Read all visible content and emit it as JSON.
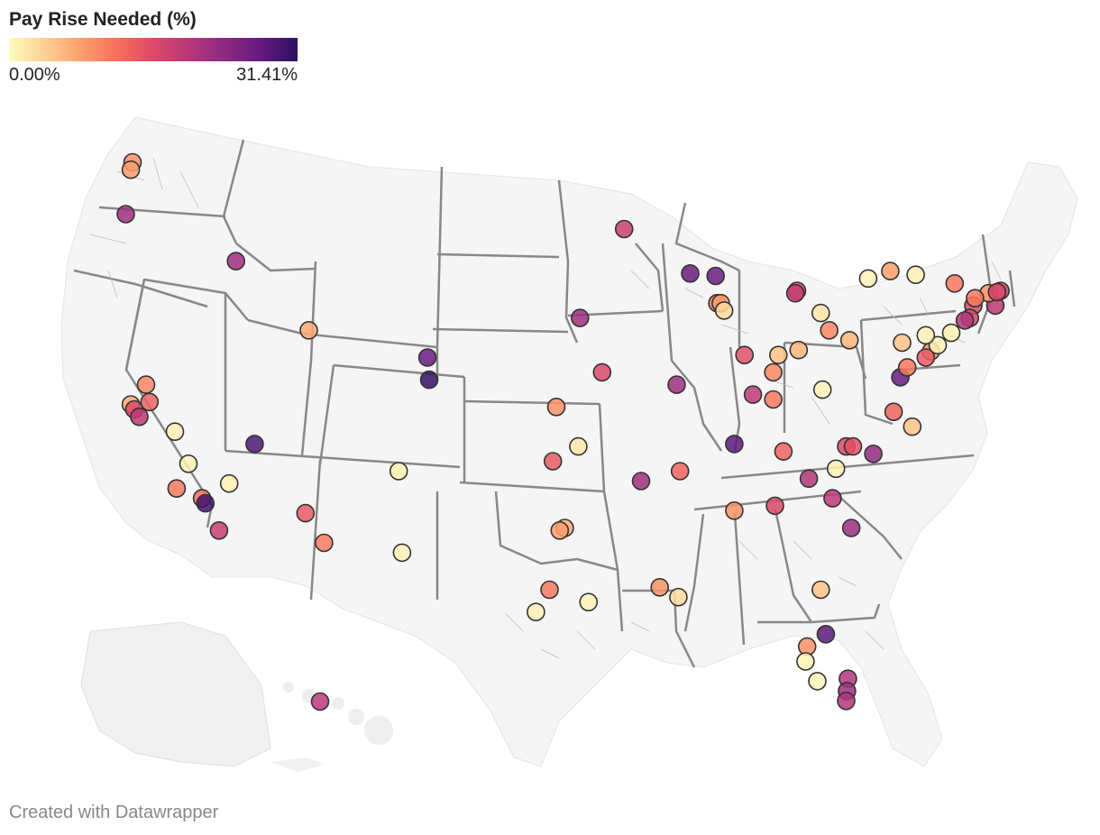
{
  "legend": {
    "title": "Pay Rise Needed (%)",
    "min_label": "0.00%",
    "max_label": "31.41%",
    "min_value": 0.0,
    "max_value": 31.41,
    "colors": [
      "#fcfdbf",
      "#fecf92",
      "#fd9f6c",
      "#f7705c",
      "#de4968",
      "#b73779",
      "#8c2981",
      "#641a80",
      "#2c115f"
    ]
  },
  "footer": {
    "credit": "Created with Datawrapper"
  },
  "points": [
    {
      "id": "seattle",
      "lon": -122.3,
      "lat": 47.6,
      "value": 9
    },
    {
      "id": "tacoma",
      "lon": -122.4,
      "lat": 47.3,
      "value": 8
    },
    {
      "id": "portland",
      "lon": -122.7,
      "lat": 45.5,
      "value": 22
    },
    {
      "id": "boise",
      "lon": -116.2,
      "lat": 43.6,
      "value": 22
    },
    {
      "id": "sacramento",
      "lon": -121.5,
      "lat": 38.6,
      "value": 10
    },
    {
      "id": "sf",
      "lon": -122.4,
      "lat": 37.8,
      "value": 7
    },
    {
      "id": "oakland",
      "lon": -122.2,
      "lat": 37.6,
      "value": 16
    },
    {
      "id": "sanjose",
      "lon": -121.9,
      "lat": 37.3,
      "value": 19
    },
    {
      "id": "stockton",
      "lon": -121.3,
      "lat": 37.9,
      "value": 13
    },
    {
      "id": "fresno",
      "lon": -119.8,
      "lat": 36.7,
      "value": 1
    },
    {
      "id": "bakersfield",
      "lon": -119.0,
      "lat": 35.4,
      "value": 1
    },
    {
      "id": "santabarbara",
      "lon": -119.7,
      "lat": 34.4,
      "value": 11
    },
    {
      "id": "la",
      "lon": -118.2,
      "lat": 34.0,
      "value": 12
    },
    {
      "id": "longbeach",
      "lon": -118.0,
      "lat": 33.8,
      "value": 30
    },
    {
      "id": "sandiego",
      "lon": -117.2,
      "lat": 32.7,
      "value": 18
    },
    {
      "id": "riverside",
      "lon": -116.6,
      "lat": 34.6,
      "value": 1
    },
    {
      "id": "vegas",
      "lon": -115.1,
      "lat": 36.2,
      "value": 29
    },
    {
      "id": "saltlake",
      "lon": -111.9,
      "lat": 40.8,
      "value": 7
    },
    {
      "id": "phoenix",
      "lon": -112.1,
      "lat": 33.4,
      "value": 14
    },
    {
      "id": "tucson",
      "lon": -111.0,
      "lat": 32.2,
      "value": 11
    },
    {
      "id": "albuquerque",
      "lon": -106.6,
      "lat": 35.1,
      "value": 1
    },
    {
      "id": "elpaso",
      "lon": -106.4,
      "lat": 31.8,
      "value": 1
    },
    {
      "id": "denver",
      "lon": -104.9,
      "lat": 39.7,
      "value": 27
    },
    {
      "id": "coloradosprings",
      "lon": -104.8,
      "lat": 38.8,
      "value": 31
    },
    {
      "id": "wichita",
      "lon": -97.3,
      "lat": 37.7,
      "value": 9
    },
    {
      "id": "okc",
      "lon": -97.5,
      "lat": 35.5,
      "value": 14
    },
    {
      "id": "tulsa",
      "lon": -96.0,
      "lat": 36.1,
      "value": 2
    },
    {
      "id": "dallas",
      "lon": -96.8,
      "lat": 32.8,
      "value": 7
    },
    {
      "id": "fortworth",
      "lon": -97.1,
      "lat": 32.7,
      "value": 8
    },
    {
      "id": "austin",
      "lon": -97.7,
      "lat": 30.3,
      "value": 11
    },
    {
      "id": "sanantonio",
      "lon": -98.5,
      "lat": 29.4,
      "value": 1
    },
    {
      "id": "houston",
      "lon": -95.4,
      "lat": 29.8,
      "value": 1
    },
    {
      "id": "minneapolis",
      "lon": -93.3,
      "lat": 44.9,
      "value": 18
    },
    {
      "id": "omaha",
      "lon": -95.9,
      "lat": 41.3,
      "value": 22
    },
    {
      "id": "kansascity",
      "lon": -94.6,
      "lat": 39.1,
      "value": 16
    },
    {
      "id": "littlerock",
      "lon": -92.3,
      "lat": 34.7,
      "value": 22
    },
    {
      "id": "madison",
      "lon": -89.4,
      "lat": 43.1,
      "value": 27
    },
    {
      "id": "stlouis",
      "lon": -90.2,
      "lat": 38.6,
      "value": 22
    },
    {
      "id": "milwaukee",
      "lon": -87.9,
      "lat": 43.0,
      "value": 27
    },
    {
      "id": "chicago",
      "lon": -87.8,
      "lat": 41.9,
      "value": 11
    },
    {
      "id": "chicago2",
      "lon": -87.6,
      "lat": 41.9,
      "value": 8
    },
    {
      "id": "chicago3",
      "lon": -87.4,
      "lat": 41.6,
      "value": 3
    },
    {
      "id": "detroit",
      "lon": -83.1,
      "lat": 42.4,
      "value": 16
    },
    {
      "id": "detroit2",
      "lon": -83.2,
      "lat": 42.3,
      "value": 18
    },
    {
      "id": "indianapolis",
      "lon": -86.2,
      "lat": 39.8,
      "value": 15
    },
    {
      "id": "columbus",
      "lon": -83.0,
      "lat": 40.0,
      "value": 6
    },
    {
      "id": "cincinnati",
      "lon": -84.5,
      "lat": 39.1,
      "value": 10
    },
    {
      "id": "dayton",
      "lon": -84.2,
      "lat": 39.8,
      "value": 5
    },
    {
      "id": "cleveland",
      "lon": -81.7,
      "lat": 41.5,
      "value": 2
    },
    {
      "id": "akron",
      "lon": -81.2,
      "lat": 40.8,
      "value": 10
    },
    {
      "id": "louisville",
      "lon": -85.7,
      "lat": 38.2,
      "value": 19
    },
    {
      "id": "lexington",
      "lon": -84.5,
      "lat": 38.0,
      "value": 11
    },
    {
      "id": "nashville",
      "lon": -86.8,
      "lat": 36.2,
      "value": 28
    },
    {
      "id": "knoxville",
      "lon": -83.9,
      "lat": 35.9,
      "value": 13
    },
    {
      "id": "memphis",
      "lon": -90.0,
      "lat": 35.1,
      "value": 13
    },
    {
      "id": "birmingham",
      "lon": -86.8,
      "lat": 33.5,
      "value": 9
    },
    {
      "id": "atlanta",
      "lon": -84.4,
      "lat": 33.7,
      "value": 16
    },
    {
      "id": "greenville",
      "lon": -82.4,
      "lat": 34.8,
      "value": 20
    },
    {
      "id": "charlotte",
      "lon": -80.8,
      "lat": 35.2,
      "value": 1
    },
    {
      "id": "columbia",
      "lon": -81.0,
      "lat": 34.0,
      "value": 19
    },
    {
      "id": "charleston",
      "lon": -79.9,
      "lat": 32.8,
      "value": 22
    },
    {
      "id": "raleigh",
      "lon": -78.6,
      "lat": 35.8,
      "value": 23
    },
    {
      "id": "winstonsalem",
      "lon": -80.2,
      "lat": 36.1,
      "value": 16
    },
    {
      "id": "greensboro",
      "lon": -79.8,
      "lat": 36.1,
      "value": 15
    },
    {
      "id": "richmond",
      "lon": -77.4,
      "lat": 37.5,
      "value": 13
    },
    {
      "id": "norfolk",
      "lon": -76.3,
      "lat": 36.9,
      "value": 5
    },
    {
      "id": "charlestonwv",
      "lon": -81.6,
      "lat": 38.4,
      "value": 1
    },
    {
      "id": "pittsburgh",
      "lon": -80.0,
      "lat": 40.4,
      "value": 6
    },
    {
      "id": "dc",
      "lon": -77.0,
      "lat": 38.9,
      "value": 27
    },
    {
      "id": "baltimore",
      "lon": -76.6,
      "lat": 39.3,
      "value": 11
    },
    {
      "id": "philadelphia",
      "lon": -75.2,
      "lat": 39.95,
      "value": 9
    },
    {
      "id": "wilmington",
      "lon": -75.5,
      "lat": 39.7,
      "value": 14
    },
    {
      "id": "trenton",
      "lon": -74.8,
      "lat": 40.2,
      "value": 1
    },
    {
      "id": "nyc",
      "lon": -74.0,
      "lat": 40.7,
      "value": 1
    },
    {
      "id": "harrisburg",
      "lon": -76.9,
      "lat": 40.3,
      "value": 5
    },
    {
      "id": "allentown",
      "lon": -75.5,
      "lat": 40.6,
      "value": 1
    },
    {
      "id": "buffalo",
      "lon": -78.9,
      "lat": 42.9,
      "value": 1
    },
    {
      "id": "rochester",
      "lon": -77.6,
      "lat": 43.2,
      "value": 8
    },
    {
      "id": "syracuse",
      "lon": -76.1,
      "lat": 43.05,
      "value": 1
    },
    {
      "id": "albany",
      "lon": -73.8,
      "lat": 42.7,
      "value": 11
    },
    {
      "id": "hartford",
      "lon": -72.7,
      "lat": 41.8,
      "value": 16
    },
    {
      "id": "newhaven",
      "lon": -72.9,
      "lat": 41.3,
      "value": 16
    },
    {
      "id": "bridgeport",
      "lon": -73.2,
      "lat": 41.2,
      "value": 20
    },
    {
      "id": "providence",
      "lon": -71.4,
      "lat": 41.8,
      "value": 19
    },
    {
      "id": "worcester",
      "lon": -71.8,
      "lat": 42.3,
      "value": 9
    },
    {
      "id": "boston",
      "lon": -71.1,
      "lat": 42.4,
      "value": 17
    },
    {
      "id": "springfield",
      "lon": -72.6,
      "lat": 42.1,
      "value": 11
    },
    {
      "id": "cambridge",
      "lon": -71.3,
      "lat": 42.35,
      "value": 16
    },
    {
      "id": "jacksonville",
      "lon": -81.7,
      "lat": 30.3,
      "value": 5
    },
    {
      "id": "orlando",
      "lon": -81.4,
      "lat": 28.5,
      "value": 28
    },
    {
      "id": "tampa",
      "lon": -82.5,
      "lat": 28.0,
      "value": 9
    },
    {
      "id": "stpete",
      "lon": -82.6,
      "lat": 27.4,
      "value": 1
    },
    {
      "id": "fortmyers",
      "lon": -81.9,
      "lat": 26.6,
      "value": 1
    },
    {
      "id": "westpalm",
      "lon": -80.1,
      "lat": 26.7,
      "value": 20
    },
    {
      "id": "fortlauderdale",
      "lon": -80.15,
      "lat": 26.2,
      "value": 22
    },
    {
      "id": "miami",
      "lon": -80.2,
      "lat": 25.8,
      "value": 20
    },
    {
      "id": "neworleans",
      "lon": -90.1,
      "lat": 30.0,
      "value": 3
    },
    {
      "id": "batonrouge",
      "lon": -91.2,
      "lat": 30.4,
      "value": 9
    },
    {
      "id": "honolulu",
      "lon": -157.9,
      "lat": 21.3,
      "value": 19
    }
  ]
}
